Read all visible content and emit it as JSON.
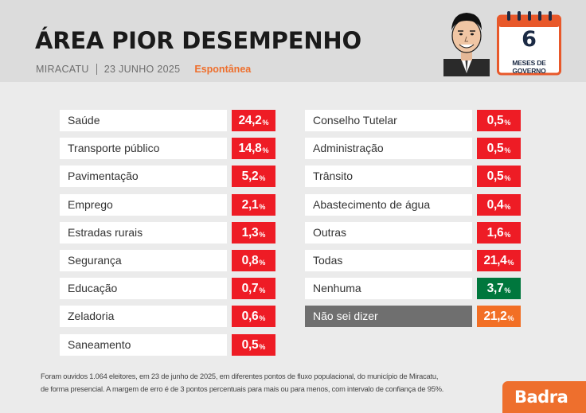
{
  "header": {
    "title": "ÁREA PIOR DESEMPENHO",
    "city": "MIRACATU",
    "date": "23 JUNHO 2025",
    "mode": "Espontânea",
    "calendar_number": "6",
    "calendar_label": "MESES DE GOVERNO"
  },
  "colors": {
    "bar_red": "#ee1c25",
    "bar_green": "#00773d",
    "bar_orange": "#f26f25",
    "accent": "#ee6f2d"
  },
  "chart_data": {
    "type": "table",
    "title": "ÁREA PIOR DESEMPENHO",
    "unit": "%",
    "columns": [
      [
        {
          "label": "Saúde",
          "value": "24,2"
        },
        {
          "label": "Transporte público",
          "value": "14,8"
        },
        {
          "label": "Pavimentação",
          "value": "5,2"
        },
        {
          "label": "Emprego",
          "value": "2,1"
        },
        {
          "label": "Estradas rurais",
          "value": "1,3"
        },
        {
          "label": "Segurança",
          "value": "0,8"
        },
        {
          "label": "Educação",
          "value": "0,7"
        },
        {
          "label": "Zeladoria",
          "value": "0,6"
        },
        {
          "label": "Saneamento",
          "value": "0,5"
        }
      ],
      [
        {
          "label": "Conselho Tutelar",
          "value": "0,5"
        },
        {
          "label": "Administração",
          "value": "0,5"
        },
        {
          "label": "Trânsito",
          "value": "0,5"
        },
        {
          "label": "Abastecimento de água",
          "value": "0,4"
        },
        {
          "label": "Outras",
          "value": "1,6"
        },
        {
          "label": "Todas",
          "value": "21,4"
        },
        {
          "label": "Nenhuma",
          "value": "3,7",
          "color": "green"
        },
        {
          "label": "Não sei dizer",
          "value": "21,2",
          "color": "orange"
        }
      ]
    ]
  },
  "footnote": {
    "line1": "Foram ouvidos 1.064 eleitores, em 23 de junho de 2025, em diferentes pontos de fluxo populacional, do município de Miracatu,",
    "line2": "de forma presencial. A margem de erro é de 3 pontos percentuais para mais ou para menos, com intervalo de confiança de 95%."
  },
  "brand": "Badra"
}
